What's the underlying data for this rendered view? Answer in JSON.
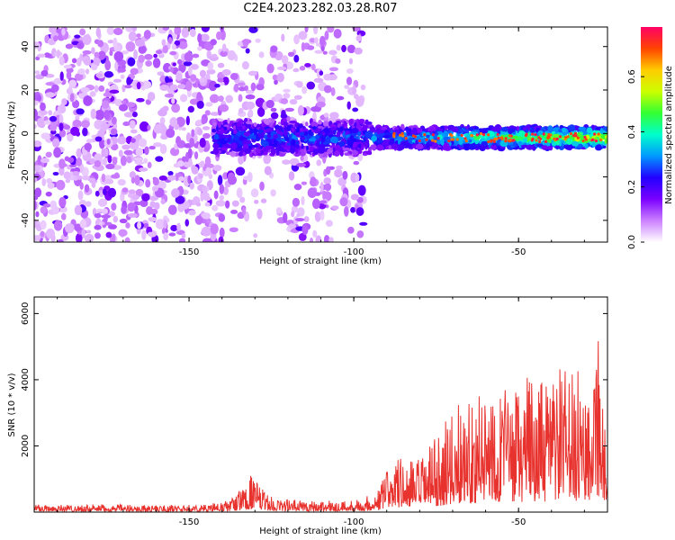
{
  "title": "C2E4.2023.282.03.28.R07",
  "colors": {
    "snr_line": "#e8322e",
    "background": "#ffffff",
    "axis": "#000000"
  },
  "chart_data": [
    {
      "type": "heatmap",
      "xlabel": "Height of straight line (km)",
      "ylabel": "Frequency (Hz)",
      "xlim": [
        -197,
        -23
      ],
      "ylim": [
        -50,
        49
      ],
      "xticks": [
        -150,
        -100,
        -50
      ],
      "yticks": [
        -40,
        -20,
        0,
        20,
        40
      ],
      "colorbar": {
        "label": "Normalized spectral amplitude",
        "ticks": [
          0.0,
          0.2,
          0.4,
          0.6
        ],
        "tick_labels": [
          "0.0",
          "0.2",
          "0.4",
          "0.6"
        ],
        "range": [
          0,
          0.78
        ],
        "colormap": [
          "#ffffff",
          "#cc80ff",
          "#7a00ff",
          "#2200ff",
          "#0099ff",
          "#00ffcc",
          "#33ff33",
          "#ccff00",
          "#ffcc00",
          "#ff4400",
          "#ff0066"
        ]
      },
      "background_noise": {
        "x_range": [
          -197,
          -97
        ],
        "y_range": [
          -50,
          49
        ],
        "amplitude": 0.05
      },
      "band": {
        "x_range": [
          -143,
          -23
        ],
        "center_freq": -2,
        "halfwidth": 6,
        "peak_amplitude": 0.5
      }
    },
    {
      "type": "line",
      "xlabel": "Height of straight line (km)",
      "ylabel": "SNR (10 * v/v)",
      "xlim": [
        -197,
        -23
      ],
      "ylim": [
        0,
        6500
      ],
      "xticks": [
        -150,
        -100,
        -50
      ],
      "yticks": [
        2000,
        4000,
        6000
      ],
      "series": [
        {
          "x": [
            -197,
            -185,
            -175,
            -165,
            -155,
            -145,
            -138,
            -134,
            -131,
            -129,
            -125,
            -120,
            -112,
            -104,
            -98,
            -93,
            -90,
            -87,
            -85,
            -80,
            -75,
            -70,
            -66,
            -62,
            -58,
            -55,
            -50,
            -46,
            -42,
            -38,
            -34,
            -30,
            -27,
            -26,
            -24,
            -23
          ],
          "values": [
            250,
            220,
            230,
            210,
            200,
            220,
            350,
            700,
            1150,
            800,
            450,
            380,
            350,
            330,
            400,
            600,
            1300,
            1800,
            1500,
            1600,
            2200,
            3000,
            3500,
            3400,
            4100,
            3700,
            3600,
            4200,
            3700,
            4400,
            4100,
            4200,
            4900,
            6450,
            2900,
            1300
          ]
        }
      ]
    }
  ]
}
